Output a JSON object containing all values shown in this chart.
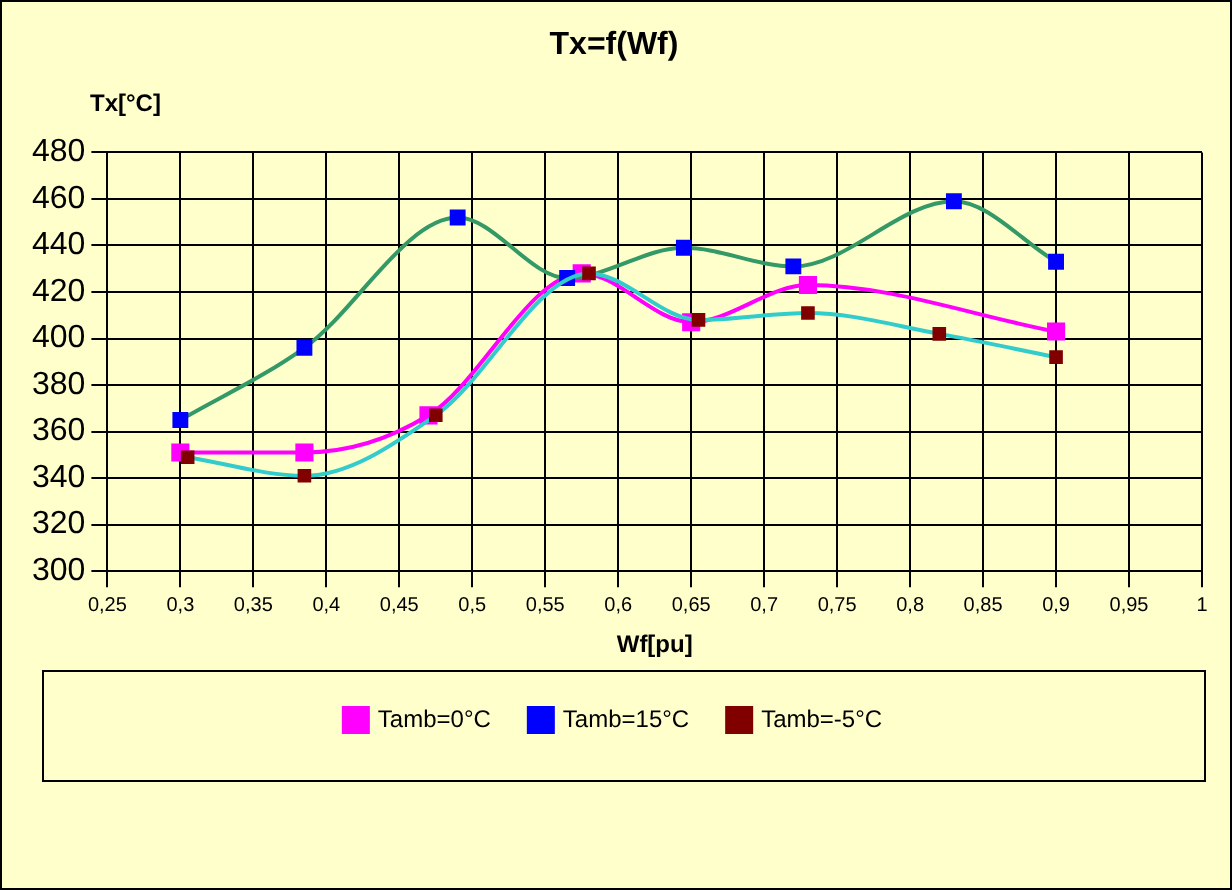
{
  "chart_data": {
    "type": "line",
    "title": "Tx=f(Wf)",
    "xlabel": "Wf[pu]",
    "ylabel": "Tx[°C]",
    "xlim": [
      0.25,
      1
    ],
    "xticks": [
      {
        "value": 0.25,
        "label": "0,25"
      },
      {
        "value": 0.3,
        "label": "0,3"
      },
      {
        "value": 0.35,
        "label": "0,35"
      },
      {
        "value": 0.4,
        "label": "0,4"
      },
      {
        "value": 0.45,
        "label": "0,45"
      },
      {
        "value": 0.5,
        "label": "0,5"
      },
      {
        "value": 0.55,
        "label": "0,55"
      },
      {
        "value": 0.6,
        "label": "0,6"
      },
      {
        "value": 0.65,
        "label": "0,65"
      },
      {
        "value": 0.7,
        "label": "0,7"
      },
      {
        "value": 0.75,
        "label": "0,75"
      },
      {
        "value": 0.8,
        "label": "0,8"
      },
      {
        "value": 0.85,
        "label": "0,85"
      },
      {
        "value": 0.9,
        "label": "0,9"
      },
      {
        "value": 0.95,
        "label": "0,95"
      },
      {
        "value": 1,
        "label": "1"
      }
    ],
    "ylim": [
      300,
      480
    ],
    "yticks": [
      300,
      320,
      340,
      360,
      380,
      400,
      420,
      440,
      460,
      480
    ],
    "grid": true,
    "legend": "bottom",
    "marker": "square",
    "series": [
      {
        "name": "Tamb=0°C",
        "color": "#ff00ff",
        "colors": [
          "#ff00ff",
          "#ff00ff",
          "#ff00ff",
          "#ff00ff",
          "#ff00ff",
          "#ff00ff",
          "#ff00ff"
        ],
        "x": [
          0.3,
          0.385,
          0.47,
          0.575,
          0.65,
          0.73,
          0.9
        ],
        "values": [
          351,
          351,
          367,
          428,
          407,
          423,
          403
        ]
      },
      {
        "name": "Tamb=15°C",
        "color": "#339966",
        "colors": [
          "#0000ff",
          "#0000ff",
          "#0000ff",
          "#0000ff",
          "#0000ff",
          "#0000ff",
          "#0000ff",
          "#0000ff"
        ],
        "x": [
          0.3,
          0.385,
          0.49,
          0.565,
          0.645,
          0.72,
          0.83,
          0.9
        ],
        "values": [
          365,
          396,
          452,
          426,
          439,
          431,
          459,
          433
        ]
      },
      {
        "name": "Tamb=-5°C",
        "color": "#33cccc",
        "colors": [
          "#800000",
          "#800000",
          "#800000",
          "#800000",
          "#800000",
          "#800000",
          "#800000",
          "#800000"
        ],
        "x": [
          0.305,
          0.385,
          0.475,
          0.58,
          0.655,
          0.73,
          0.82,
          0.9
        ],
        "values": [
          349,
          341,
          367,
          428,
          408,
          411,
          402,
          392
        ]
      }
    ]
  }
}
